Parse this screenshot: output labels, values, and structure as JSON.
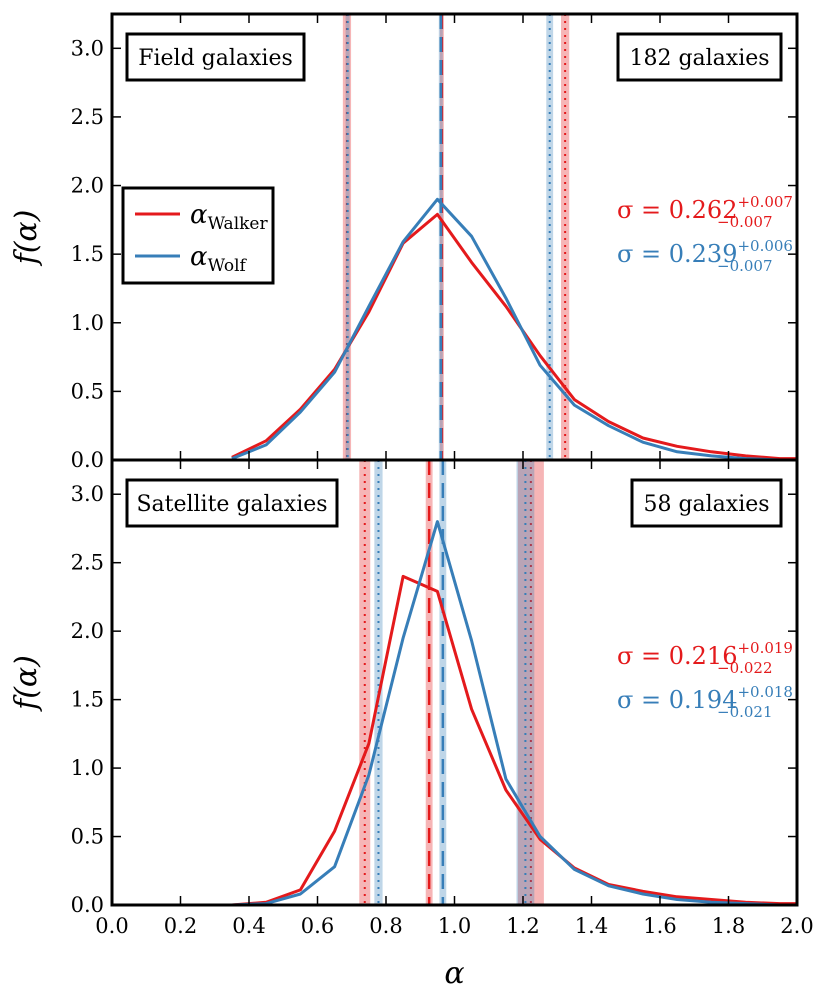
{
  "chart_data": [
    {
      "type": "line",
      "panel": "top",
      "title_box": "Field galaxies",
      "count_box": "182 galaxies",
      "xlabel": "α",
      "ylabel": "f(α)",
      "xlim": [
        0.0,
        2.0
      ],
      "ylim": [
        0.0,
        3.25
      ],
      "yticks": [
        "0.0",
        "0.5",
        "1.0",
        "1.5",
        "2.0",
        "2.5",
        "3.0"
      ],
      "legend": [
        {
          "symbol": "α",
          "sub": "Walker",
          "color": "#e41a1c"
        },
        {
          "symbol": "α",
          "sub": "Wolf",
          "color": "#377eb8"
        }
      ],
      "sigma": [
        {
          "label": "σ = 0.262",
          "sup": "+0.007",
          "sub": "−0.007",
          "color": "#e41a1c"
        },
        {
          "label": "σ = 0.239",
          "sup": "+0.006",
          "sub": "−0.007",
          "color": "#377eb8"
        }
      ],
      "series": [
        {
          "name": "Walker",
          "color": "#e41a1c",
          "x": [
            0.35,
            0.45,
            0.55,
            0.65,
            0.75,
            0.85,
            0.95,
            1.05,
            1.15,
            1.25,
            1.35,
            1.45,
            1.55,
            1.65,
            1.75,
            1.85,
            1.95,
            2.0
          ],
          "y": [
            0.02,
            0.14,
            0.37,
            0.66,
            1.08,
            1.58,
            1.79,
            1.44,
            1.12,
            0.76,
            0.44,
            0.28,
            0.16,
            0.1,
            0.06,
            0.03,
            0.01,
            0.01
          ]
        },
        {
          "name": "Wolf",
          "color": "#377eb8",
          "x": [
            0.35,
            0.45,
            0.55,
            0.65,
            0.75,
            0.85,
            0.95,
            1.05,
            1.15,
            1.25,
            1.35,
            1.45,
            1.55,
            1.65,
            1.75,
            1.85,
            1.95,
            2.0
          ],
          "y": [
            0.01,
            0.11,
            0.35,
            0.64,
            1.12,
            1.59,
            1.9,
            1.63,
            1.18,
            0.69,
            0.4,
            0.25,
            0.13,
            0.06,
            0.03,
            0.01,
            0.0,
            0.0
          ]
        }
      ],
      "vlines": [
        {
          "x": 0.963,
          "color": "#e41a1c",
          "style": "dashed",
          "band": 0.004
        },
        {
          "x": 0.96,
          "color": "#377eb8",
          "style": "dashed",
          "band": 0.004
        },
        {
          "x": 0.686,
          "color": "#e41a1c",
          "style": "dotted",
          "band": 0.012
        },
        {
          "x": 0.688,
          "color": "#377eb8",
          "style": "dotted",
          "band": 0.006
        },
        {
          "x": 1.323,
          "color": "#e41a1c",
          "style": "dotted",
          "band": 0.012
        },
        {
          "x": 1.278,
          "color": "#377eb8",
          "style": "dotted",
          "band": 0.01
        }
      ]
    },
    {
      "type": "line",
      "panel": "bottom",
      "title_box": "Satellite galaxies",
      "count_box": "58 galaxies",
      "xlabel": "α",
      "ylabel": "f(α)",
      "xlim": [
        0.0,
        2.0
      ],
      "ylim": [
        0.0,
        3.25
      ],
      "xticks": [
        "0.0",
        "0.2",
        "0.4",
        "0.6",
        "0.8",
        "1.0",
        "1.2",
        "1.4",
        "1.6",
        "1.8",
        "2.0"
      ],
      "yticks": [
        "0.0",
        "0.5",
        "1.0",
        "1.5",
        "2.0",
        "2.5",
        "3.0"
      ],
      "sigma": [
        {
          "label": "σ = 0.216",
          "sup": "+0.019",
          "sub": "−0.022",
          "color": "#e41a1c"
        },
        {
          "label": "σ = 0.194",
          "sup": "+0.018",
          "sub": "−0.021",
          "color": "#377eb8"
        }
      ],
      "series": [
        {
          "name": "Walker",
          "color": "#e41a1c",
          "x": [
            0.35,
            0.45,
            0.55,
            0.65,
            0.75,
            0.85,
            0.95,
            1.05,
            1.15,
            1.25,
            1.35,
            1.45,
            1.55,
            1.65,
            1.75,
            1.85,
            1.95,
            2.0
          ],
          "y": [
            0.0,
            0.02,
            0.11,
            0.54,
            1.18,
            2.4,
            2.29,
            1.43,
            0.84,
            0.48,
            0.27,
            0.15,
            0.1,
            0.06,
            0.04,
            0.02,
            0.01,
            0.01
          ]
        },
        {
          "name": "Wolf",
          "color": "#377eb8",
          "x": [
            0.35,
            0.45,
            0.55,
            0.65,
            0.75,
            0.85,
            0.95,
            1.05,
            1.15,
            1.25,
            1.35,
            1.45,
            1.55,
            1.65,
            1.75,
            1.85,
            1.95,
            2.0
          ],
          "y": [
            0.0,
            0.01,
            0.08,
            0.28,
            0.95,
            1.95,
            2.8,
            1.93,
            0.92,
            0.5,
            0.26,
            0.14,
            0.08,
            0.04,
            0.02,
            0.01,
            0.0,
            0.0
          ]
        }
      ],
      "vlines": [
        {
          "x": 0.926,
          "color": "#e41a1c",
          "style": "dashed",
          "band": 0.01
        },
        {
          "x": 0.966,
          "color": "#377eb8",
          "style": "dashed",
          "band": 0.01
        },
        {
          "x": 0.738,
          "color": "#e41a1c",
          "style": "dotted",
          "band": 0.016
        },
        {
          "x": 0.778,
          "color": "#377eb8",
          "style": "dotted",
          "band": 0.012
        },
        {
          "x": 1.223,
          "color": "#e41a1c",
          "style": "dotted",
          "band": 0.038
        },
        {
          "x": 1.207,
          "color": "#377eb8",
          "style": "dotted",
          "band": 0.026
        }
      ]
    }
  ]
}
